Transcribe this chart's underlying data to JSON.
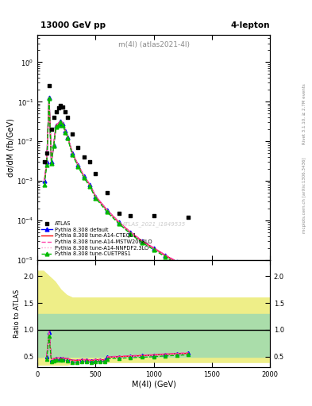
{
  "title_main": "m(4l) (atlas2021-4l)",
  "top_left_label": "13000 GeV pp",
  "top_right_label": "4-lepton",
  "right_label_top": "Rivet 3.1.10, ≥ 2.7M events",
  "right_label_bottom": "mcplots.cern.ch [arXiv:1306.3436]",
  "watermark": "ATLAS_2021_I1849535",
  "xlabel": "M(4l) (GeV)",
  "ylabel_main": "dσ/dM (fb/GeV)",
  "ylabel_ratio": "Ratio to ATLAS",
  "xlim": [
    0,
    2000
  ],
  "ylim_main_log": [
    -5,
    0.7
  ],
  "ylim_main": [
    1e-05,
    5
  ],
  "ylim_ratio": [
    0.3,
    2.3
  ],
  "ratio_yticks": [
    0.5,
    1.0,
    1.5,
    2.0
  ],
  "atlas_x": [
    60,
    80,
    100,
    120,
    140,
    160,
    180,
    200,
    220,
    240,
    260,
    300,
    350,
    400,
    450,
    500,
    600,
    700,
    800,
    1000,
    1300
  ],
  "atlas_y": [
    0.003,
    0.005,
    0.25,
    0.02,
    0.04,
    0.055,
    0.07,
    0.08,
    0.075,
    0.055,
    0.04,
    0.015,
    0.007,
    0.004,
    0.003,
    0.0015,
    0.0005,
    0.00015,
    0.00013,
    0.00013,
    0.00012
  ],
  "pythia_x": [
    60,
    80,
    100,
    120,
    140,
    160,
    180,
    200,
    220,
    240,
    260,
    300,
    350,
    400,
    450,
    500,
    600,
    700,
    800,
    900,
    1000,
    1100,
    1200,
    1300
  ],
  "default_y": [
    0.001,
    0.003,
    0.13,
    0.003,
    0.008,
    0.025,
    0.028,
    0.032,
    0.028,
    0.018,
    0.013,
    0.005,
    0.0025,
    0.0013,
    0.0008,
    0.0004,
    0.00018,
    9e-05,
    5e-05,
    3e-05,
    2e-05,
    1.3e-05,
    9e-06,
    5e-06
  ],
  "cteql1_y": [
    0.001,
    0.003,
    0.13,
    0.003,
    0.008,
    0.025,
    0.028,
    0.032,
    0.028,
    0.018,
    0.013,
    0.005,
    0.0025,
    0.0013,
    0.0008,
    0.0004,
    0.00018,
    9e-05,
    5e-05,
    3e-05,
    2e-05,
    1.3e-05,
    9e-06,
    5e-06
  ],
  "mstw_y": [
    0.001,
    0.003,
    0.13,
    0.003,
    0.0085,
    0.026,
    0.029,
    0.033,
    0.029,
    0.019,
    0.0135,
    0.0051,
    0.0026,
    0.00135,
    0.00083,
    0.00042,
    0.000185,
    9.3e-05,
    5.1e-05,
    3.1e-05,
    2.05e-05,
    1.35e-05,
    9.2e-06,
    5.2e-06
  ],
  "nnpdf_y": [
    0.001,
    0.003,
    0.13,
    0.003,
    0.0078,
    0.0245,
    0.0275,
    0.0315,
    0.0275,
    0.0175,
    0.0127,
    0.0049,
    0.00245,
    0.00127,
    0.00078,
    0.00039,
    0.000175,
    8.8e-05,
    4.8e-05,
    2.9e-05,
    1.9e-05,
    1.25e-05,
    8.5e-06,
    4.8e-06
  ],
  "cuetp8s1_y": [
    0.0008,
    0.0025,
    0.12,
    0.0028,
    0.0075,
    0.023,
    0.026,
    0.03,
    0.026,
    0.0165,
    0.012,
    0.0046,
    0.0023,
    0.0012,
    0.00073,
    0.00037,
    0.000163,
    8.3e-05,
    4.6e-05,
    2.75e-05,
    1.83e-05,
    1.2e-05,
    8e-06,
    4.5e-06
  ],
  "ratio_x_spike": [
    80,
    100,
    120,
    140,
    160,
    200,
    220,
    260,
    300,
    340,
    380,
    420,
    460,
    500,
    540,
    580
  ],
  "ratio_default_spike": [
    0.5,
    0.95,
    0.44,
    0.46,
    0.47,
    0.47,
    0.47,
    0.46,
    0.43,
    0.43,
    0.44,
    0.44,
    0.43,
    0.44,
    0.44,
    0.44
  ],
  "ratio_cteql1_spike": [
    0.5,
    0.95,
    0.44,
    0.46,
    0.47,
    0.47,
    0.47,
    0.46,
    0.43,
    0.43,
    0.44,
    0.44,
    0.43,
    0.44,
    0.44,
    0.44
  ],
  "ratio_mstw_spike": [
    0.52,
    0.97,
    0.45,
    0.47,
    0.48,
    0.48,
    0.48,
    0.47,
    0.44,
    0.44,
    0.45,
    0.45,
    0.44,
    0.45,
    0.45,
    0.45
  ],
  "ratio_nnpdf_spike": [
    0.48,
    0.93,
    0.43,
    0.45,
    0.46,
    0.46,
    0.46,
    0.45,
    0.42,
    0.42,
    0.43,
    0.43,
    0.42,
    0.43,
    0.43,
    0.43
  ],
  "ratio_cuetp8s1_spike": [
    0.45,
    0.88,
    0.41,
    0.43,
    0.44,
    0.44,
    0.44,
    0.43,
    0.4,
    0.4,
    0.41,
    0.41,
    0.4,
    0.41,
    0.41,
    0.41
  ],
  "ratio_x_flat": [
    600,
    700,
    800,
    900,
    1000,
    1100,
    1200,
    1300
  ],
  "ratio_default_flat": [
    0.49,
    0.5,
    0.51,
    0.52,
    0.53,
    0.545,
    0.555,
    0.565
  ],
  "ratio_cteql1_flat": [
    0.49,
    0.5,
    0.51,
    0.52,
    0.53,
    0.545,
    0.555,
    0.565
  ],
  "ratio_mstw_flat": [
    0.5,
    0.51,
    0.52,
    0.53,
    0.54,
    0.555,
    0.565,
    0.575
  ],
  "ratio_nnpdf_flat": [
    0.48,
    0.49,
    0.5,
    0.51,
    0.52,
    0.535,
    0.545,
    0.555
  ],
  "ratio_cuetp8s1_flat": [
    0.46,
    0.47,
    0.48,
    0.49,
    0.5,
    0.515,
    0.525,
    0.535
  ],
  "band_x": [
    0,
    50,
    100,
    150,
    200,
    250,
    300,
    350,
    400,
    500,
    600,
    700,
    800,
    1000,
    1500,
    2000
  ],
  "band_green_low": [
    0.5,
    0.5,
    0.5,
    0.5,
    0.5,
    0.5,
    0.5,
    0.5,
    0.5,
    0.5,
    0.5,
    0.5,
    0.5,
    0.5,
    0.5,
    0.5
  ],
  "band_green_high": [
    1.3,
    1.3,
    1.3,
    1.3,
    1.3,
    1.3,
    1.3,
    1.3,
    1.3,
    1.3,
    1.3,
    1.3,
    1.3,
    1.3,
    1.3,
    1.3
  ],
  "band_yellow_low": [
    0.35,
    0.35,
    0.35,
    0.35,
    0.35,
    0.35,
    0.37,
    0.38,
    0.4,
    0.4,
    0.4,
    0.4,
    0.4,
    0.4,
    0.4,
    0.4
  ],
  "band_yellow_high": [
    2.1,
    2.1,
    2.0,
    1.9,
    1.75,
    1.65,
    1.6,
    1.6,
    1.6,
    1.6,
    1.6,
    1.6,
    1.6,
    1.6,
    1.6,
    1.6
  ],
  "color_default": "#0000ff",
  "color_cteql1": "#ff0000",
  "color_mstw": "#ff44aa",
  "color_nnpdf": "#ff99cc",
  "color_cuetp8s1": "#00bb00",
  "color_atlas": "#000000",
  "color_band_green": "#aaddaa",
  "color_band_yellow": "#eeee88",
  "legend_labels": [
    "ATLAS",
    "Pythia 8.308 default",
    "Pythia 8.308 tune-A14-CTEQL1",
    "Pythia 8.308 tune-A14-MSTW2008LO",
    "Pythia 8.308 tune-A14-NNPDF2.3LO",
    "Pythia 8.308 tune-CUETP8S1"
  ]
}
